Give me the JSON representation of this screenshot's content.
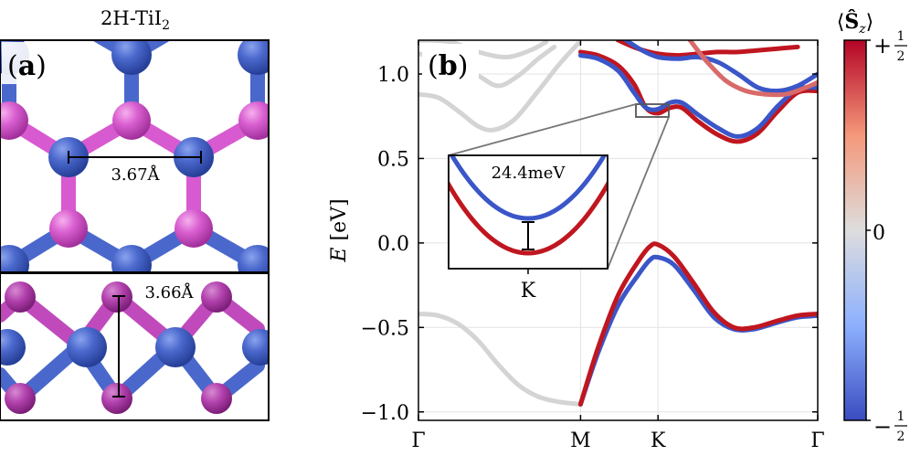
{
  "panel_a": {
    "material_label": "2H-TiI",
    "material_subscript": "2",
    "panel_label": "a",
    "lattice_constant": "3.67Å",
    "layer_thickness": "3.66Å",
    "colors": {
      "ti_atom": "#3f5fc4",
      "i_atom": "#d85ad0"
    }
  },
  "chart_data": {
    "type": "line",
    "panel_label": "b",
    "title": "",
    "xlabel": "",
    "ylabel": "E [eV]",
    "ylabel_italic": "E",
    "ylabel_unit": "[eV]",
    "ylim": [
      -1.05,
      1.2
    ],
    "yticks": [
      -1.0,
      -0.5,
      0.0,
      0.5,
      1.0
    ],
    "ytick_labels": [
      "−1.0",
      "−0.5",
      "0.0",
      "0.5",
      "1.0"
    ],
    "x_high_symmetry": [
      {
        "label": "Γ",
        "x": 0.0
      },
      {
        "label": "M",
        "x": 0.406
      },
      {
        "label": "K",
        "x": 0.6
      },
      {
        "label": "Γ",
        "x": 1.0
      }
    ],
    "grid": true,
    "series": [
      {
        "name": "band Γ–M lower (unpolarized)",
        "color": "#d4d4d4",
        "points": [
          [
            0.0,
            -0.42
          ],
          [
            0.05,
            -0.43
          ],
          [
            0.1,
            -0.48
          ],
          [
            0.15,
            -0.58
          ],
          [
            0.2,
            -0.72
          ],
          [
            0.25,
            -0.84
          ],
          [
            0.3,
            -0.91
          ],
          [
            0.35,
            -0.94
          ],
          [
            0.406,
            -0.955
          ]
        ]
      },
      {
        "name": "band Γ–M upper 1 (unpolarized)",
        "color": "#d4d4d4",
        "points": [
          [
            0.0,
            0.88
          ],
          [
            0.05,
            0.86
          ],
          [
            0.1,
            0.78
          ],
          [
            0.15,
            0.69
          ],
          [
            0.19,
            0.67
          ],
          [
            0.24,
            0.73
          ],
          [
            0.3,
            0.9
          ],
          [
            0.35,
            1.05
          ],
          [
            0.38,
            1.13
          ],
          [
            0.4,
            1.18
          ]
        ]
      },
      {
        "name": "band Γ–M upper 2 (unpolarized)",
        "color": "#d4d4d4",
        "points": [
          [
            0.0,
            1.12
          ],
          [
            0.08,
            1.08
          ],
          [
            0.15,
            0.99
          ],
          [
            0.2,
            0.93
          ],
          [
            0.25,
            0.99
          ],
          [
            0.3,
            1.09
          ],
          [
            0.34,
            1.16
          ]
        ]
      },
      {
        "name": "band Γ–M upper 3 (unpolarized)",
        "color": "#d4d4d4",
        "points": [
          [
            0.0,
            1.2
          ],
          [
            0.08,
            1.19
          ],
          [
            0.15,
            1.13
          ],
          [
            0.22,
            1.1
          ],
          [
            0.28,
            1.14
          ],
          [
            0.32,
            1.19
          ]
        ]
      },
      {
        "name": "valence spin-down",
        "color": "#3a56c8",
        "points": [
          [
            0.406,
            -0.955
          ],
          [
            0.45,
            -0.65
          ],
          [
            0.5,
            -0.37
          ],
          [
            0.55,
            -0.19
          ],
          [
            0.58,
            -0.1
          ],
          [
            0.6,
            -0.085
          ],
          [
            0.64,
            -0.13
          ],
          [
            0.69,
            -0.28
          ],
          [
            0.74,
            -0.44
          ],
          [
            0.79,
            -0.51
          ],
          [
            0.84,
            -0.51
          ],
          [
            0.9,
            -0.47
          ],
          [
            0.95,
            -0.44
          ],
          [
            1.0,
            -0.43
          ]
        ]
      },
      {
        "name": "valence spin-up",
        "color": "#c0161f",
        "points": [
          [
            0.406,
            -0.955
          ],
          [
            0.45,
            -0.62
          ],
          [
            0.5,
            -0.31
          ],
          [
            0.55,
            -0.11
          ],
          [
            0.58,
            -0.02
          ],
          [
            0.6,
            -0.01
          ],
          [
            0.64,
            -0.08
          ],
          [
            0.69,
            -0.24
          ],
          [
            0.74,
            -0.41
          ],
          [
            0.79,
            -0.5
          ],
          [
            0.84,
            -0.5
          ],
          [
            0.9,
            -0.46
          ],
          [
            0.95,
            -0.43
          ],
          [
            1.0,
            -0.42
          ]
        ]
      },
      {
        "name": "conduction spin-up",
        "color": "#c0161f",
        "points": [
          [
            0.406,
            1.13
          ],
          [
            0.45,
            1.11
          ],
          [
            0.5,
            1.05
          ],
          [
            0.54,
            0.94
          ],
          [
            0.57,
            0.8
          ],
          [
            0.6,
            0.768
          ],
          [
            0.63,
            0.8
          ],
          [
            0.66,
            0.8
          ],
          [
            0.7,
            0.72
          ],
          [
            0.75,
            0.64
          ],
          [
            0.8,
            0.6
          ],
          [
            0.85,
            0.65
          ],
          [
            0.9,
            0.78
          ],
          [
            0.95,
            0.89
          ],
          [
            1.0,
            0.9
          ]
        ]
      },
      {
        "name": "conduction spin-down",
        "color": "#3a56c8",
        "points": [
          [
            0.406,
            1.11
          ],
          [
            0.45,
            1.09
          ],
          [
            0.5,
            1.02
          ],
          [
            0.54,
            0.89
          ],
          [
            0.57,
            0.8
          ],
          [
            0.6,
            0.792
          ],
          [
            0.63,
            0.83
          ],
          [
            0.66,
            0.83
          ],
          [
            0.7,
            0.76
          ],
          [
            0.75,
            0.68
          ],
          [
            0.8,
            0.63
          ],
          [
            0.85,
            0.68
          ],
          [
            0.9,
            0.81
          ],
          [
            0.95,
            0.91
          ],
          [
            1.0,
            0.92
          ]
        ]
      },
      {
        "name": "upper band spin-up",
        "color": "#c0161f",
        "points": [
          [
            0.5,
            1.2
          ],
          [
            0.55,
            1.15
          ],
          [
            0.6,
            1.12
          ],
          [
            0.65,
            1.11
          ],
          [
            0.7,
            1.12
          ],
          [
            0.75,
            1.13
          ],
          [
            0.8,
            1.13
          ],
          [
            0.85,
            1.14
          ],
          [
            0.9,
            1.15
          ],
          [
            0.95,
            1.16
          ]
        ]
      },
      {
        "name": "upper band spin-down",
        "color": "#3a56c8",
        "points": [
          [
            0.52,
            1.2
          ],
          [
            0.56,
            1.14
          ],
          [
            0.6,
            1.1
          ],
          [
            0.65,
            1.09
          ],
          [
            0.7,
            1.1
          ],
          [
            0.75,
            1.07
          ],
          [
            0.8,
            1.0
          ],
          [
            0.85,
            0.92
          ],
          [
            0.9,
            0.9
          ],
          [
            0.95,
            0.93
          ],
          [
            1.0,
            1.0
          ]
        ]
      },
      {
        "name": "upper band mixed",
        "color": "#d96a6a",
        "points": [
          [
            0.68,
            1.2
          ],
          [
            0.72,
            1.08
          ],
          [
            0.77,
            0.96
          ],
          [
            0.82,
            0.9
          ],
          [
            0.87,
            0.88
          ],
          [
            0.92,
            0.88
          ],
          [
            0.96,
            0.91
          ],
          [
            1.0,
            0.95
          ]
        ]
      }
    ],
    "inset": {
      "annotation": "24.4meV",
      "xlabel": "K",
      "valence_band_min_label": "",
      "splitting_meV": 24.4
    },
    "colorbar": {
      "label_open": "⟨",
      "label_symbol": "Ŝ",
      "label_sub": "z",
      "label_close": "⟩",
      "top_sign": "+",
      "top_num": "1",
      "top_den": "2",
      "mid_label": "0",
      "bottom_sign": "−",
      "bottom_num": "1",
      "bottom_den": "2",
      "colors": [
        "#3a4cc0",
        "#8db0fe",
        "#dddddd",
        "#f4987a",
        "#b40426"
      ]
    }
  }
}
